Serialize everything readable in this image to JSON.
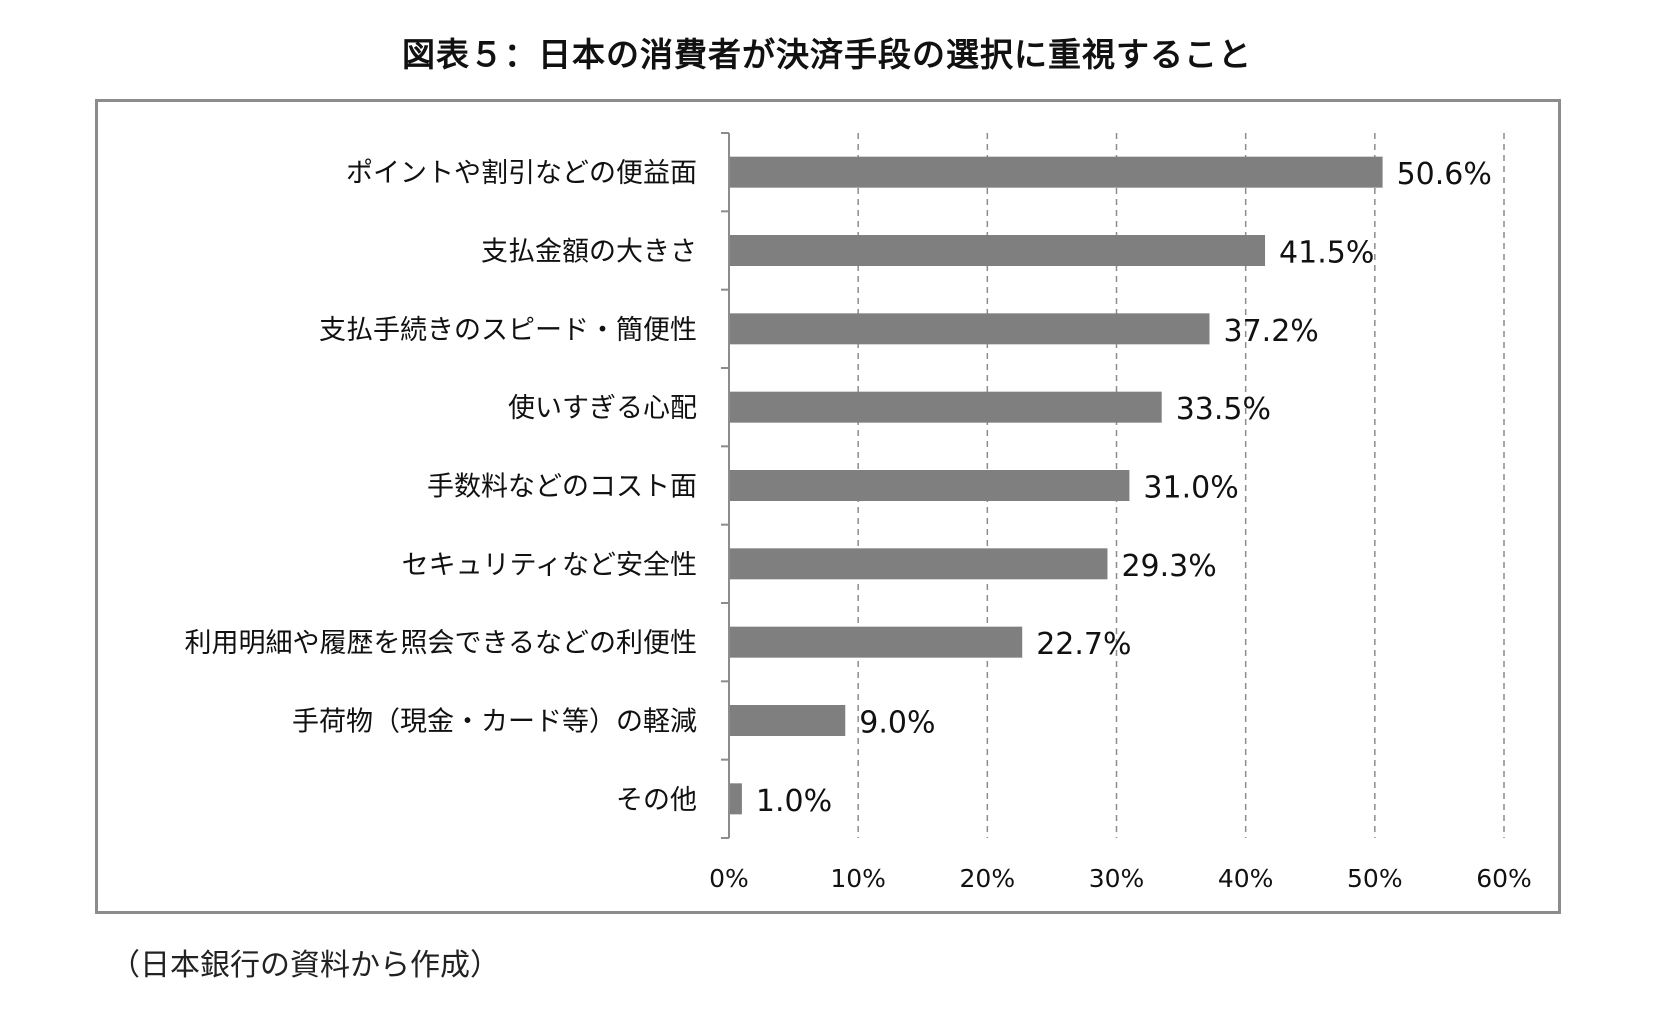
{
  "title": "図表５：日本の消費者が決済手段の選択に重視すること",
  "source_note": "（日本銀行の資料から作成）",
  "colors": {
    "bar": "#7f7f7f",
    "axis": "#8c8c8c",
    "grid": "#8c8c8c",
    "text": "#111111"
  },
  "chart_data": {
    "type": "bar",
    "orientation": "horizontal",
    "categories": [
      "ポイントや割引などの便益面",
      "支払金額の大きさ",
      "支払手続きのスピード・簡便性",
      "使いすぎる心配",
      "手数料などのコスト面",
      "セキュリティなど安全性",
      "利用明細や履歴を照会できるなどの利便性",
      "手荷物（現金・カード等）の軽減",
      "その他"
    ],
    "values": [
      50.6,
      41.5,
      37.2,
      33.5,
      31.0,
      29.3,
      22.7,
      9.0,
      1.0
    ],
    "data_labels": [
      "50.6%",
      "41.5%",
      "37.2%",
      "33.5%",
      "31.0%",
      "29.3%",
      "22.7%",
      "9.0%",
      "1.0%"
    ],
    "xlim": [
      0,
      60
    ],
    "x_ticks": [
      0,
      10,
      20,
      30,
      40,
      50,
      60
    ],
    "x_tick_labels": [
      "0%",
      "10%",
      "20%",
      "30%",
      "40%",
      "50%",
      "60%"
    ],
    "grid": "vertical dashed",
    "legend": "none"
  }
}
